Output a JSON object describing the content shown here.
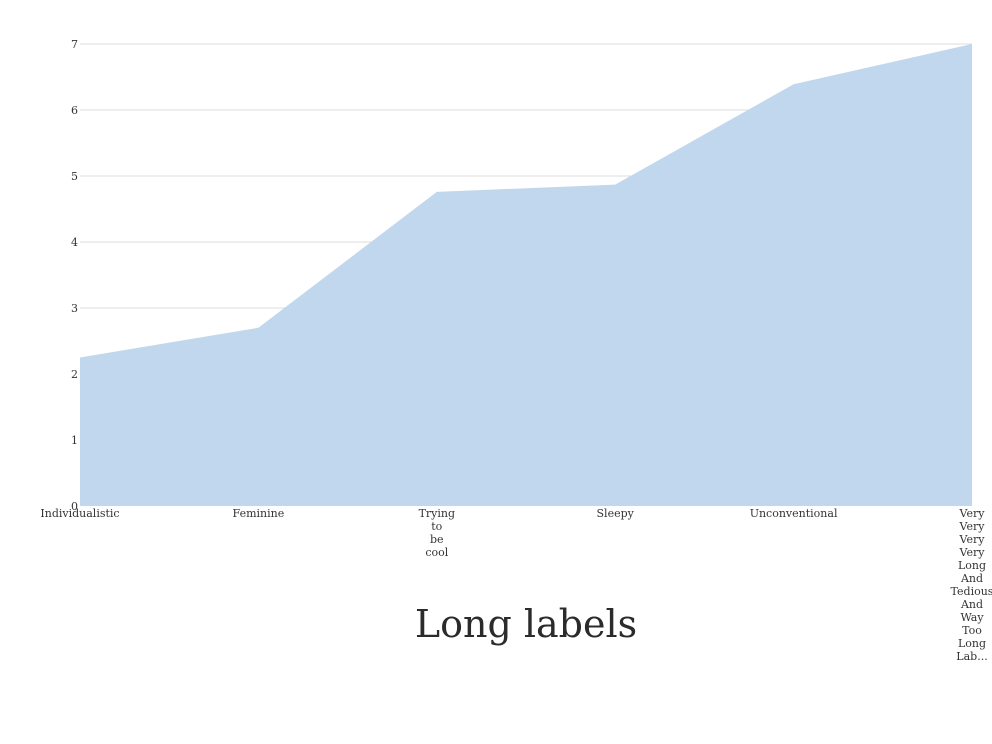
{
  "chart_data": {
    "type": "area",
    "title": "Long labels",
    "xlabel": "",
    "ylabel": "",
    "categories": [
      "Individualistic",
      "Feminine",
      "Trying to be cool",
      "Sleepy",
      "Unconventional",
      "Very Very Very Very Long And Tedious And Way Too Long Lab..."
    ],
    "category_lines": [
      [
        "Individualistic"
      ],
      [
        "Feminine"
      ],
      [
        "Trying",
        "to",
        "be",
        "cool"
      ],
      [
        "Sleepy"
      ],
      [
        "Unconventional"
      ],
      [
        "Very",
        "Very",
        "Very",
        "Very",
        "Long",
        "And",
        "Tedious",
        "And",
        "Way",
        "Too",
        "Long",
        "Lab..."
      ]
    ],
    "series": [
      {
        "values": [
          2.25,
          2.7,
          4.76,
          4.87,
          6.39,
          7.0
        ],
        "color": "#c0d7ee"
      }
    ],
    "ylim": [
      0,
      7
    ],
    "yticks": [
      0,
      1,
      2,
      3,
      4,
      5,
      6,
      7
    ],
    "grid": true,
    "gridColor": "#dcdcdc",
    "legend": "none"
  }
}
